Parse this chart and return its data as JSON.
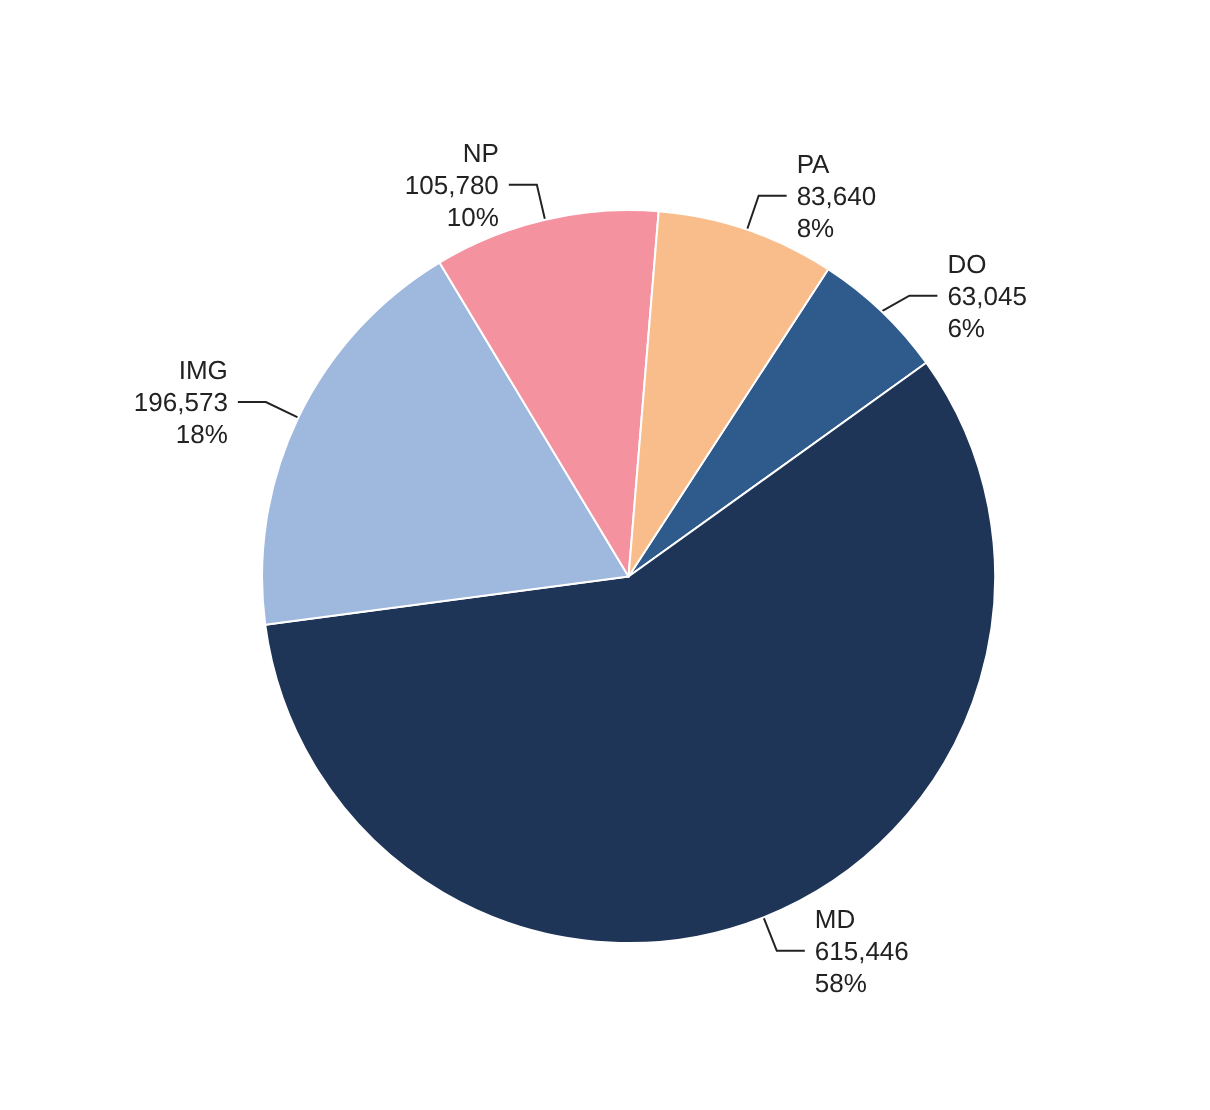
{
  "chart_data": {
    "type": "pie",
    "categories": [
      "DO",
      "MD",
      "IMG",
      "NP",
      "PA"
    ],
    "values": [
      63045,
      615446,
      196573,
      105780,
      83640
    ],
    "value_labels": [
      "63,045\n6%",
      "615,446\n58%",
      "196,573\n18%",
      "105,780\n10%",
      "83,640\n8%"
    ],
    "colors": [
      "#2f5a8c",
      "#1f3558",
      "#9fb8de",
      "#f4929f",
      "#f9bd8b"
    ],
    "legend": false
  }
}
